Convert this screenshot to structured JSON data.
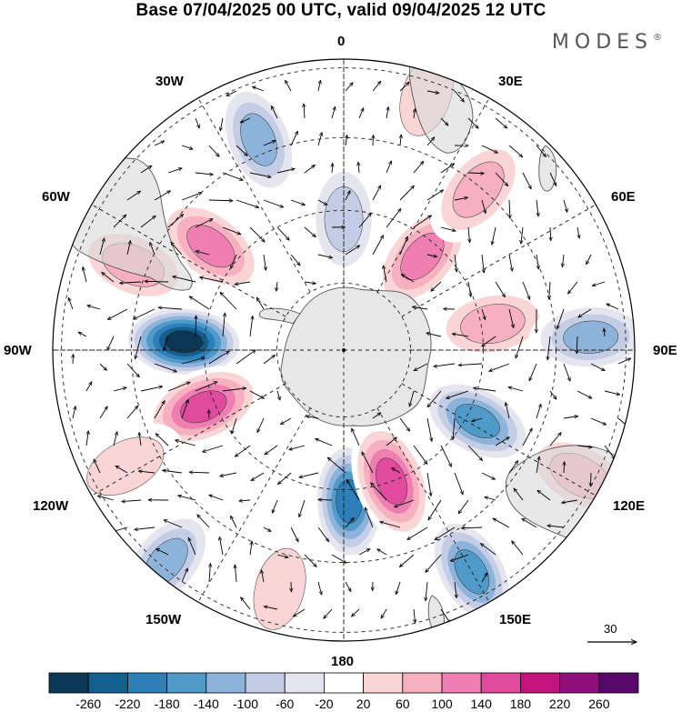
{
  "header": {
    "title": "Base 07/04/2025 00 UTC, valid 09/04/2025 12 UTC",
    "brand": "MODES",
    "brand_mark": "®"
  },
  "map": {
    "projection": "south polar stereographic",
    "longitude_labels": {
      "top": "0",
      "bottom": "180",
      "left": "90W",
      "right": "90E",
      "upper_left_1": "30W",
      "upper_left_2": "60W",
      "upper_right_1": "30E",
      "upper_right_2": "60E",
      "lower_left_1": "120W",
      "lower_left_2": "150W",
      "lower_right_1": "120E",
      "lower_right_2": "150E"
    },
    "colors": {
      "land": "#e3e3e3",
      "coast": "#555555",
      "grid": "#222222",
      "arrows": "#000000"
    },
    "anomaly_features": [
      {
        "sign": "pos",
        "value": 140,
        "lon": -52,
        "colat": 0.58
      },
      {
        "sign": "pos",
        "value": 80,
        "lon": -68,
        "colat": 0.78
      },
      {
        "sign": "neg",
        "value": -100,
        "lon": -22,
        "colat": 0.78
      },
      {
        "sign": "neg",
        "value": -260,
        "lon": -87,
        "colat": 0.55
      },
      {
        "sign": "pos",
        "value": 180,
        "lon": -112,
        "colat": 0.52
      },
      {
        "sign": "pos",
        "value": 60,
        "lon": -118,
        "colat": 0.85
      },
      {
        "sign": "neg",
        "value": -100,
        "lon": -140,
        "colat": 0.95
      },
      {
        "sign": "neg",
        "value": -180,
        "lon": 178,
        "colat": 0.52
      },
      {
        "sign": "pos",
        "value": 60,
        "lon": -165,
        "colat": 0.85
      },
      {
        "sign": "pos",
        "value": 180,
        "lon": 160,
        "colat": 0.48
      },
      {
        "sign": "neg",
        "value": -140,
        "lon": 150,
        "colat": 0.88
      },
      {
        "sign": "neg",
        "value": -140,
        "lon": 118,
        "colat": 0.52
      },
      {
        "sign": "pos",
        "value": 100,
        "lon": 118,
        "colat": 0.92
      },
      {
        "sign": "pos",
        "value": 100,
        "lon": 80,
        "colat": 0.52
      },
      {
        "sign": "neg",
        "value": -100,
        "lon": 87,
        "colat": 0.85
      },
      {
        "sign": "pos",
        "value": 140,
        "lon": 40,
        "colat": 0.42
      },
      {
        "sign": "pos",
        "value": 100,
        "lon": 40,
        "colat": 0.72
      },
      {
        "sign": "neg",
        "value": -60,
        "lon": 0,
        "colat": 0.45
      },
      {
        "sign": "pos",
        "value": 60,
        "lon": 18,
        "colat": 0.92
      }
    ]
  },
  "vector_reference": {
    "label": "30"
  },
  "colorbar": {
    "colors": [
      "#0c3754",
      "#135f8f",
      "#2c7fb8",
      "#4f9ac9",
      "#8db3da",
      "#c4cde6",
      "#e5e5f0",
      "#ffffff",
      "#f9d5d6",
      "#f6b0bf",
      "#ef7fb2",
      "#e04b9e",
      "#c3137d",
      "#8e0f7a",
      "#57096b"
    ],
    "labels": [
      "-260",
      "-220",
      "-180",
      "-140",
      "-100",
      "-60",
      "-20",
      "20",
      "60",
      "100",
      "140",
      "180",
      "220",
      "260"
    ]
  }
}
